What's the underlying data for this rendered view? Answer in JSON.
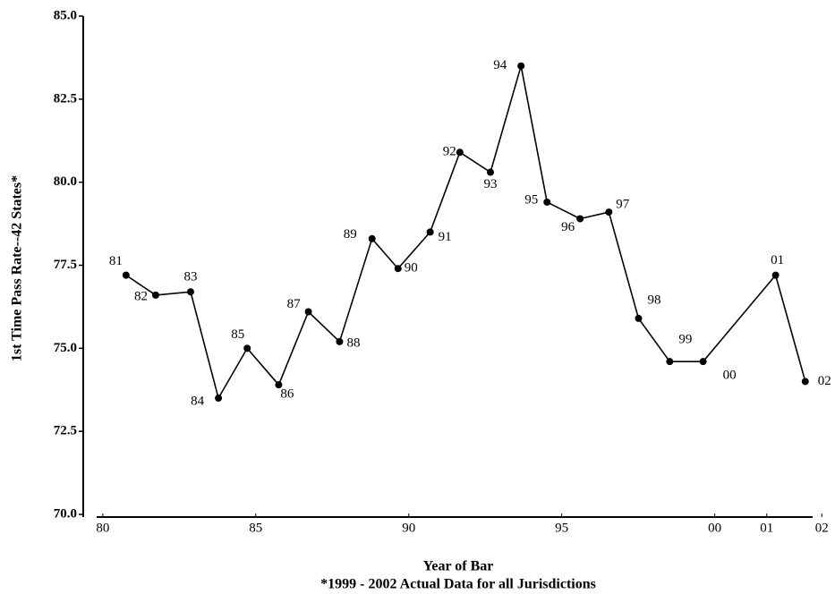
{
  "chart_data": {
    "type": "line",
    "y_label": "1st Time Pass Rate--42 States*",
    "x_label": "Year of Bar",
    "note": "*1999 - 2002 Actual Data for all Jurisdictions",
    "x": [
      1980.76,
      1981.73,
      1982.87,
      1983.78,
      1984.72,
      1985.75,
      1986.72,
      1987.74,
      1988.8,
      1989.65,
      1990.7,
      1991.67,
      1992.67,
      1993.67,
      1994.52,
      1995.6,
      1996.54,
      1997.51,
      1998.53,
      1999.62,
      2001.99,
      2002.96
    ],
    "point_labels": [
      "81",
      "82",
      "83",
      "84",
      "85",
      "86",
      "87",
      "88",
      "89",
      "90",
      "91",
      "92",
      "93",
      "94",
      "95",
      "96",
      "97",
      "98",
      "99",
      "00",
      "01",
      "02"
    ],
    "series": [
      {
        "color": "#000000",
        "values": [
          77.2,
          76.6,
          76.7,
          73.5,
          75.0,
          73.9,
          76.1,
          75.2,
          78.3,
          77.4,
          78.5,
          80.9,
          80.3,
          83.5,
          79.4,
          78.9,
          79.1,
          75.9,
          74.6,
          74.6,
          77.2,
          74.0
        ]
      }
    ],
    "xlim": [
      1979.8,
      2003.2
    ],
    "xticks": [
      {
        "value": 1980,
        "label": "80"
      },
      {
        "value": 1985,
        "label": "85"
      },
      {
        "value": 1990,
        "label": "90"
      },
      {
        "value": 1995,
        "label": "95"
      },
      {
        "value": 2000,
        "label": "00"
      },
      {
        "value": 2001.7,
        "label": "01"
      },
      {
        "value": 2003.5,
        "label": "02"
      }
    ],
    "ylim": [
      70,
      85
    ],
    "yticks": [
      {
        "value": 70,
        "label": "70.0"
      },
      72.5,
      {
        "value": 75,
        "label": "75.0"
      },
      77.5,
      {
        "value": 80,
        "label": "80.0"
      },
      82.5,
      {
        "value": 85,
        "label": "85.0"
      }
    ],
    "grid": false
  }
}
